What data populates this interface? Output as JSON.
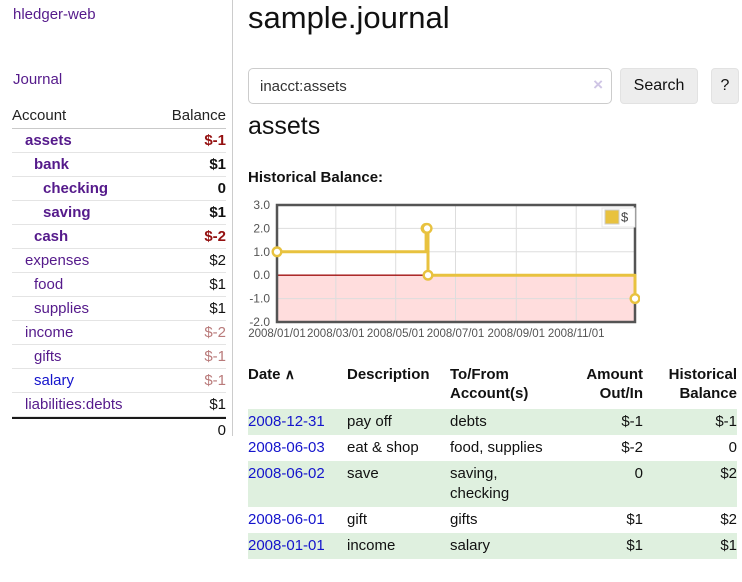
{
  "sidebar": {
    "brand": "hledger-web",
    "journal_label": "Journal",
    "accounts_table": {
      "headers": [
        "Account",
        "Balance"
      ],
      "rows": [
        {
          "account": "assets",
          "depth": 1,
          "bold": true,
          "balance": "$-1"
        },
        {
          "account": "bank",
          "depth": 2,
          "bold": true,
          "balance": "$1"
        },
        {
          "account": "checking",
          "depth": 3,
          "bold": true,
          "balance": "0"
        },
        {
          "account": "saving",
          "depth": 3,
          "bold": true,
          "balance": "$1"
        },
        {
          "account": "cash",
          "depth": 2,
          "bold": true,
          "balance": "$-2"
        },
        {
          "account": "expenses",
          "depth": 1,
          "bold": false,
          "balance": "$2"
        },
        {
          "account": "food",
          "depth": 2,
          "bold": false,
          "balance": "$1"
        },
        {
          "account": "supplies",
          "depth": 2,
          "bold": false,
          "balance": "$1"
        },
        {
          "account": "income",
          "depth": 1,
          "bold": false,
          "balance": "$-2"
        },
        {
          "account": "gifts",
          "depth": 2,
          "bold": false,
          "balance": "$-1"
        },
        {
          "account": "salary",
          "depth": 2,
          "bold": false,
          "balance": "$-1",
          "link_color": "blue"
        },
        {
          "account": "liabilities:debts",
          "depth": 1,
          "bold": false,
          "balance": "$1"
        }
      ],
      "total": "0"
    }
  },
  "header": {
    "title": "sample.journal"
  },
  "search": {
    "value": "inacct:assets",
    "clear_icon": "×",
    "button_label": "Search",
    "help_label": "?"
  },
  "account_page": {
    "heading": "assets",
    "chart_label": "Historical Balance:"
  },
  "chart_data": {
    "type": "line",
    "step": true,
    "title": "Historical Balance:",
    "x_range": [
      "2008-01-01",
      "2008-12-31"
    ],
    "ylim": [
      -2,
      3
    ],
    "yticks": [
      {
        "value": 3,
        "label": "3.0"
      },
      {
        "value": 2,
        "label": "2.0"
      },
      {
        "value": 1,
        "label": "1.0"
      },
      {
        "value": 0,
        "label": "0.0"
      },
      {
        "value": -1,
        "label": "-1.0"
      },
      {
        "value": -2,
        "label": "-2.0"
      }
    ],
    "xticks": [
      {
        "date": "2008-01-01",
        "label": "2008/01/01"
      },
      {
        "date": "2008-03-01",
        "label": "2008/03/01"
      },
      {
        "date": "2008-05-01",
        "label": "2008/05/01"
      },
      {
        "date": "2008-07-01",
        "label": "2008/07/01"
      },
      {
        "date": "2008-09-01",
        "label": "2008/09/01"
      },
      {
        "date": "2008-11-01",
        "label": "2008/11/01"
      }
    ],
    "series": [
      {
        "name": "$",
        "color": "#e8c23f",
        "points": [
          [
            "2008-01-01",
            1
          ],
          [
            "2008-06-01",
            2
          ],
          [
            "2008-06-02",
            2
          ],
          [
            "2008-06-03",
            0
          ],
          [
            "2008-12-31",
            -1
          ]
        ]
      }
    ],
    "grid": true,
    "legend_position": "top-right",
    "negative_region_color": "#ffdddd",
    "zero_line_color": "#a01010"
  },
  "register": {
    "headers": [
      "Date",
      "Description",
      "To/From Account(s)",
      "Amount Out/In",
      "Historical Balance"
    ],
    "sort_indicator": "∧",
    "rows": [
      {
        "date": "2008-12-31",
        "description": "pay off",
        "accounts": "debts",
        "amount": "$-1",
        "balance": "$-1"
      },
      {
        "date": "2008-06-03",
        "description": "eat & shop",
        "accounts": "food, supplies",
        "amount": "$-2",
        "balance": "0"
      },
      {
        "date": "2008-06-02",
        "description": "save",
        "accounts": "saving, checking",
        "amount": "0",
        "balance": "$2"
      },
      {
        "date": "2008-06-01",
        "description": "gift",
        "accounts": "gifts",
        "amount": "$1",
        "balance": "$2"
      },
      {
        "date": "2008-01-01",
        "description": "income",
        "accounts": "salary",
        "amount": "$1",
        "balance": "$1"
      }
    ]
  },
  "colors": {
    "link_purple": "#551a8b",
    "link_blue": "#1414cc",
    "negative_red": "#941010",
    "negative_dim_red": "#b97a7a",
    "row_highlight_green": "#dff0df",
    "chart_line_gold": "#e8c23f",
    "chart_negative_pink": "#ffdddd",
    "chart_zero_line_red": "#a01010"
  }
}
